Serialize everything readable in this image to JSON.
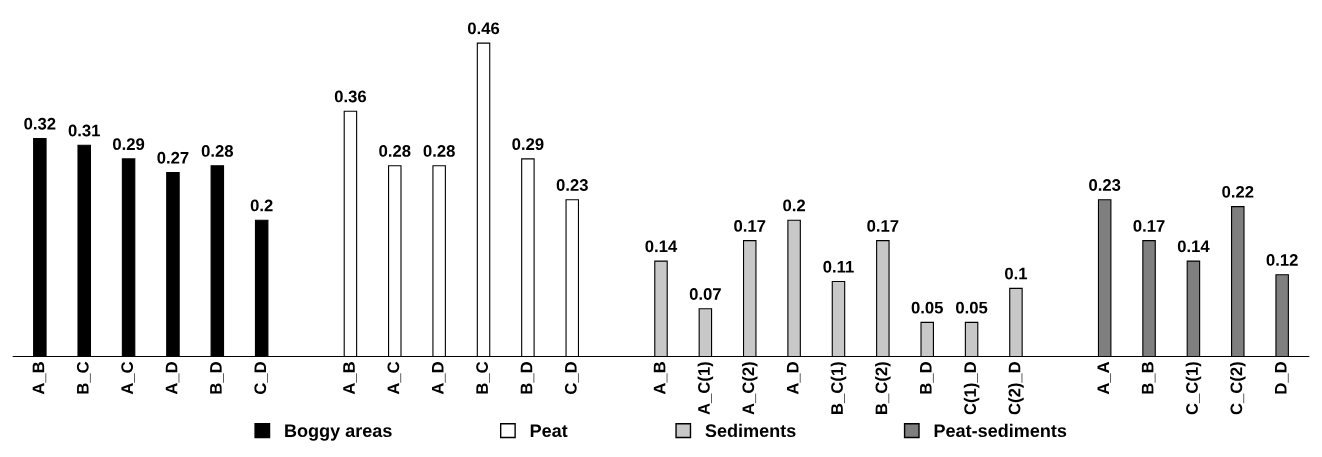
{
  "chart_data": {
    "type": "bar",
    "categories": [
      "A_B",
      "B_C",
      "A_C",
      "A_D",
      "B_D",
      "C_D",
      null,
      "A_B",
      "A_C",
      "A_D",
      "B_C",
      "B_D",
      "C_D",
      null,
      "A_B",
      "A_C(1)",
      "A_C(2)",
      "A_D",
      "B_C(1)",
      "B_C(2)",
      "B_D",
      "C(1)_D",
      "C(2)_D",
      null,
      "A_A",
      "B_B",
      "C_C(1)",
      "C_C(2)",
      "D_D"
    ],
    "series": [
      {
        "name": "Boggy areas",
        "color": "#000000",
        "values": [
          0.32,
          0.31,
          0.29,
          0.27,
          0.28,
          0.2,
          null,
          null,
          null,
          null,
          null,
          null,
          null,
          null,
          null,
          null,
          null,
          null,
          null,
          null,
          null,
          null,
          null,
          null,
          null,
          null,
          null,
          null,
          null
        ]
      },
      {
        "name": "Peat",
        "color": "#ffffff",
        "values": [
          null,
          null,
          null,
          null,
          null,
          null,
          null,
          0.36,
          0.28,
          0.28,
          0.46,
          0.29,
          0.23,
          null,
          null,
          null,
          null,
          null,
          null,
          null,
          null,
          null,
          null,
          null,
          null,
          null,
          null,
          null,
          null
        ]
      },
      {
        "name": "Sediments",
        "color": "#c8c8c8",
        "values": [
          null,
          null,
          null,
          null,
          null,
          null,
          null,
          null,
          null,
          null,
          null,
          null,
          null,
          null,
          0.14,
          0.07,
          0.17,
          0.2,
          0.11,
          0.17,
          0.05,
          0.05,
          0.1,
          null,
          null,
          null,
          null,
          null,
          null
        ]
      },
      {
        "name": "Peat-sediments",
        "color": "#7f7f7f",
        "values": [
          null,
          null,
          null,
          null,
          null,
          null,
          null,
          null,
          null,
          null,
          null,
          null,
          null,
          null,
          null,
          null,
          null,
          null,
          null,
          null,
          null,
          null,
          null,
          null,
          0.23,
          0.17,
          0.14,
          0.22,
          0.12
        ]
      }
    ],
    "data_labels": true,
    "tick_labels": "x",
    "legend": "bottom",
    "grid": false
  }
}
